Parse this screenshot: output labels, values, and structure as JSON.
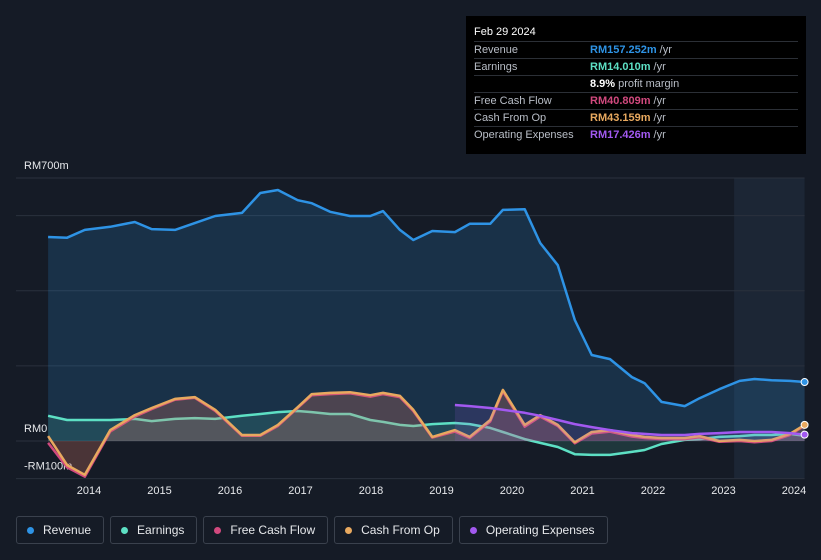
{
  "chart_data": {
    "type": "line",
    "x": [
      2013.42,
      2013.69,
      2013.94,
      2014.3,
      2014.65,
      2014.89,
      2015.22,
      2015.5,
      2015.79,
      2016.17,
      2016.43,
      2016.68,
      2016.96,
      2017.16,
      2017.42,
      2017.7,
      2017.99,
      2018.17,
      2018.41,
      2018.6,
      2018.87,
      2019.19,
      2019.4,
      2019.69,
      2019.87,
      2020.18,
      2020.4,
      2020.65,
      2020.89,
      2021.13,
      2021.39,
      2021.7,
      2021.88,
      2022.12,
      2022.45,
      2022.66,
      2022.94,
      2023.23,
      2023.44,
      2023.68,
      2023.94,
      2024.15
    ],
    "xlim": [
      2013,
      2024.15
    ],
    "xticks": [
      2014,
      2015,
      2016,
      2017,
      2018,
      2019,
      2020,
      2021,
      2022,
      2023,
      2024
    ],
    "ylim": [
      -100,
      700
    ],
    "yticks": [
      {
        "value": -100,
        "label": "-RM100m"
      },
      {
        "value": 0,
        "label": "RM0"
      },
      {
        "value": 700,
        "label": "RM700m"
      }
    ],
    "gridlines": [
      0,
      200,
      400,
      600,
      700
    ],
    "highlight_from": 2023.15,
    "series": [
      {
        "name": "Revenue",
        "color": "#2e93e5",
        "values": [
          543,
          541,
          562,
          570,
          583,
          564,
          562,
          580,
          599,
          607,
          660,
          668,
          641,
          633,
          610,
          599,
          599,
          612,
          562,
          535,
          559,
          556,
          578,
          578,
          615,
          617,
          527,
          468,
          322,
          229,
          218,
          170,
          154,
          104,
          93,
          114,
          138,
          160,
          165,
          162,
          160,
          157
        ]
      },
      {
        "name": "Earnings",
        "color": "#5de0c4",
        "values": [
          67,
          56,
          56,
          56,
          59,
          53,
          59,
          61,
          59,
          67,
          72,
          77,
          80,
          77,
          72,
          72,
          56,
          51,
          43,
          40,
          45,
          48,
          45,
          35,
          24,
          5,
          -5,
          -16,
          -35,
          -37,
          -37,
          -29,
          -24,
          -8,
          3,
          5,
          11,
          13,
          16,
          16,
          19,
          14
        ]
      },
      {
        "name": "Free Cash Flow",
        "color": "#d1497e",
        "values": [
          -5,
          -70,
          -95,
          25,
          65,
          85,
          110,
          115,
          80,
          14,
          14,
          40,
          88,
          122,
          125,
          127,
          118,
          125,
          117,
          80,
          9,
          25,
          8,
          52,
          132,
          38,
          65,
          40,
          -6,
          20,
          25,
          12,
          8,
          5,
          5,
          10,
          -2,
          0,
          -3,
          0,
          16,
          41
        ]
      },
      {
        "name": "Cash From Op",
        "color": "#e8a95f",
        "values": [
          13,
          -64,
          -90,
          29,
          69,
          88,
          112,
          117,
          83,
          16,
          16,
          43,
          90,
          125,
          128,
          130,
          122,
          128,
          120,
          83,
          11,
          29,
          11,
          56,
          136,
          43,
          69,
          43,
          -3,
          24,
          29,
          16,
          11,
          8,
          8,
          13,
          0,
          3,
          0,
          3,
          19,
          43
        ]
      },
      {
        "name": "Operating Expenses",
        "color": "#a259f0",
        "values": [
          null,
          null,
          null,
          null,
          null,
          null,
          null,
          null,
          null,
          null,
          null,
          null,
          null,
          null,
          null,
          null,
          null,
          null,
          null,
          null,
          null,
          96,
          93,
          88,
          83,
          75,
          67,
          56,
          45,
          37,
          29,
          21,
          19,
          16,
          16,
          19,
          21,
          24,
          24,
          24,
          21,
          17
        ]
      }
    ],
    "tooltip": {
      "date": "Feb 29 2024",
      "rows": [
        {
          "label": "Revenue",
          "value": "RM157.252m",
          "unit": "/yr",
          "color": "#2e93e5"
        },
        {
          "label": "Earnings",
          "value": "RM14.010m",
          "unit": "/yr",
          "color": "#5de0c4"
        },
        {
          "value": "8.9%",
          "text": "profit margin",
          "color": "#ffffff"
        },
        {
          "label": "Free Cash Flow",
          "value": "RM40.809m",
          "unit": "/yr",
          "color": "#d1497e"
        },
        {
          "label": "Cash From Op",
          "value": "RM43.159m",
          "unit": "/yr",
          "color": "#e8a95f"
        },
        {
          "label": "Operating Expenses",
          "value": "RM17.426m",
          "unit": "/yr",
          "color": "#a259f0"
        }
      ]
    }
  }
}
